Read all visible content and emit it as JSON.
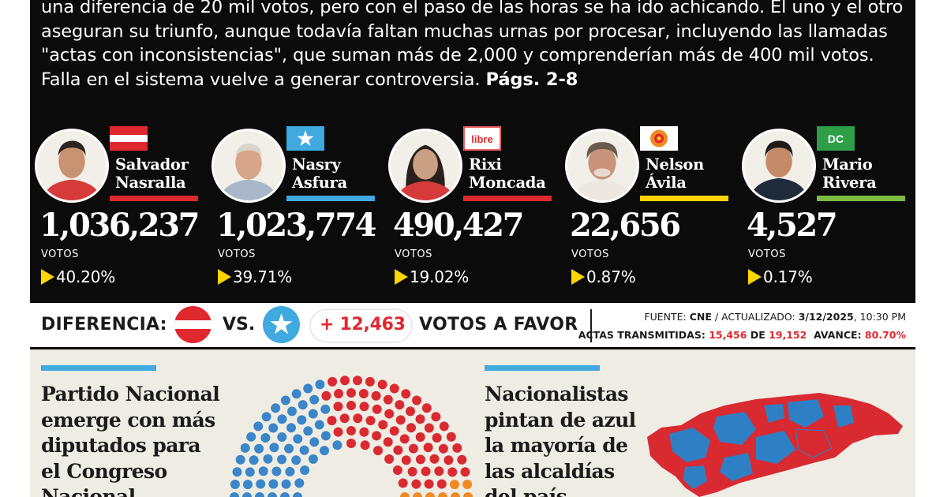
{
  "lead": {
    "text": "una diferencia de 20 mil votos, pero con el paso de las horas se ha ido achicando. El uno y el otro aseguran su triunfo, aunque todavía faltan muchas urnas por procesar, incluyendo las llamadas \"actas con inconsistencias\", que suman más de 2,000 y comprenderían más de 400 mil votos. Falla en el sistema vuelve a generar controversia.",
    "pages": "Págs. 2-8"
  },
  "candidates": [
    {
      "first": "Salvador",
      "last": "Nasralla",
      "votes": "1,036,237",
      "votes_label": "VOTOS",
      "percent": "40.20%",
      "party_color": "#e0282f",
      "flag_icon": "liberal-party-flag-icon"
    },
    {
      "first": "Nasry",
      "last": "Asfura",
      "votes": "1,023,774",
      "votes_label": "VOTOS",
      "percent": "39.71%",
      "party_color": "#3fa9e0",
      "flag_icon": "nacional-party-flag-icon"
    },
    {
      "first": "Rixi",
      "last": "Moncada",
      "votes": "490,427",
      "votes_label": "VOTOS",
      "percent": "19.02%",
      "party_color": "#e0282f",
      "flag_icon": "libre-party-logo-icon",
      "flag_text": "libre"
    },
    {
      "first": "Nelson",
      "last": "Ávila",
      "votes": "22,656",
      "votes_label": "VOTOS",
      "percent": "0.87%",
      "party_color": "#ffd400",
      "flag_icon": "pinu-party-logo-icon"
    },
    {
      "first": "Mario",
      "last": "Rivera",
      "votes": "4,527",
      "votes_label": "VOTOS",
      "percent": "0.17%",
      "party_color": "#7dbb42",
      "flag_icon": "dc-party-logo-icon",
      "flag_text": "DC"
    }
  ],
  "difference": {
    "label": "DIFERENCIA:",
    "vs": "VS.",
    "margin": "+ 12,463",
    "favor": "VOTOS A FAVOR"
  },
  "source": {
    "fuente_label": "FUENTE:",
    "fuente": "CNE",
    "actualizado_label": "/ ACTUALIZADO:",
    "date": "3/12/2025",
    "time": ", 10:30 PM",
    "actas_label": "ACTAS TRANSMITIDAS:",
    "actas_done": "15,456",
    "actas_de": "DE",
    "actas_total": "19,152",
    "avance_label": "AVANCE:",
    "avance": "80.70%"
  },
  "stories": [
    {
      "lines": [
        "Partido Nacional",
        "emerge con más",
        "diputados para",
        "el Congreso",
        "Nacional"
      ]
    },
    {
      "lines": [
        "Nacionalistas",
        "pintan de azul",
        "la mayoría de",
        "las alcaldías",
        "del país"
      ]
    }
  ],
  "colors": {
    "black": "#0b0b0b",
    "red": "#e0282f",
    "blue": "#3fa9e0",
    "yellow": "#ffd400",
    "green": "#7dbb42",
    "cream": "#efece4"
  }
}
